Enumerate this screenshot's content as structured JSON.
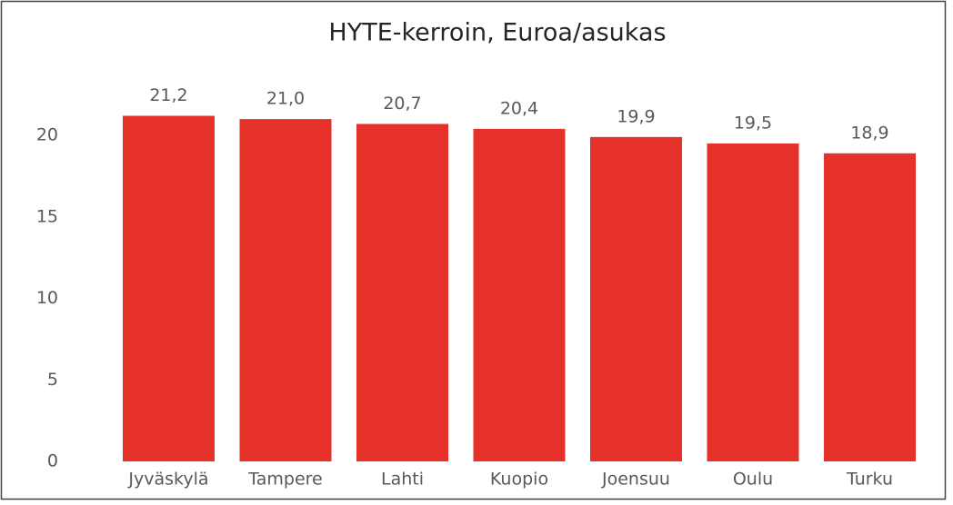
{
  "chart_data": {
    "type": "bar",
    "title": "HYTE-kerroin, Euroa/asukas",
    "categories": [
      "Jyväskylä",
      "Tampere",
      "Lahti",
      "Kuopio",
      "Joensuu",
      "Oulu",
      "Turku"
    ],
    "values": [
      21.2,
      21.0,
      20.7,
      20.4,
      19.9,
      19.5,
      18.9
    ],
    "value_labels": [
      "21,2",
      "21,0",
      "20,7",
      "20,4",
      "19,9",
      "19,5",
      "18,9"
    ],
    "color": "#e5312a",
    "ylim": [
      0,
      25
    ],
    "yticks": [
      0,
      5,
      10,
      15,
      20
    ],
    "grid": false
  }
}
